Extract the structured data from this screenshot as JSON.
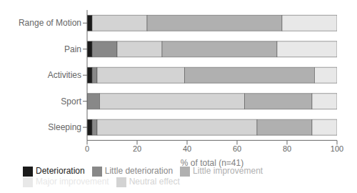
{
  "chart_data": {
    "type": "bar",
    "orientation": "horizontal",
    "stacked": true,
    "categories": [
      "Range of Motion",
      "Pain",
      "Activities",
      "Sport",
      "Sleeping"
    ],
    "series": [
      {
        "name": "Deterioration",
        "color": "#1a1a1a",
        "values": [
          2,
          2,
          2,
          0,
          2
        ]
      },
      {
        "name": "Little deterioration",
        "color": "#888888",
        "values": [
          0,
          10,
          2,
          5,
          2
        ]
      },
      {
        "name": "Neutral effect",
        "color": "#d3d3d3",
        "values": [
          22,
          18,
          35,
          58,
          64
        ]
      },
      {
        "name": "Little improvement",
        "color": "#b0b0b0",
        "values": [
          54,
          46,
          52,
          27,
          22
        ]
      },
      {
        "name": "Major improvement",
        "color": "#e8e8e8",
        "values": [
          22,
          24,
          9,
          10,
          10
        ]
      }
    ],
    "xlabel": "% of total (n=41)",
    "xlim": [
      0,
      100
    ],
    "xticks": [
      0,
      20,
      40,
      60,
      80,
      100
    ],
    "grid": false,
    "legend": "bottom"
  }
}
